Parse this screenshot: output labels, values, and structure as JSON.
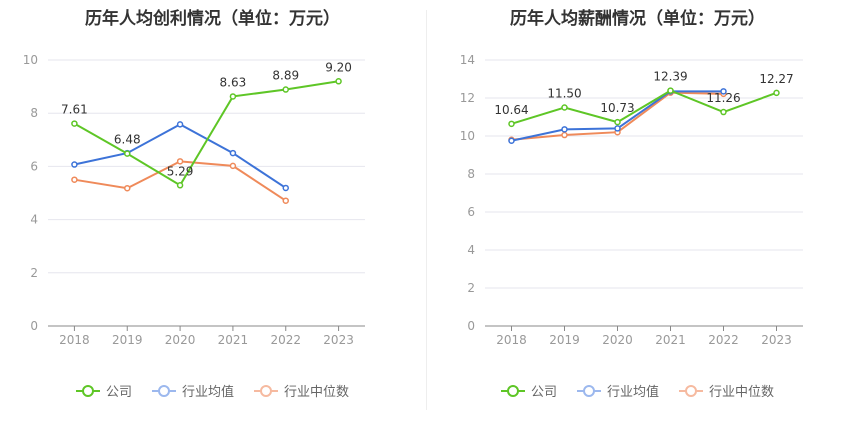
{
  "charts": [
    {
      "title": "历年人均创利情况（单位：万元）",
      "legend": [
        "公司",
        "行业均值",
        "行业中位数"
      ]
    },
    {
      "title": "历年人均薪酬情况（单位：万元）",
      "legend": [
        "公司",
        "行业均值",
        "行业中位数"
      ]
    }
  ],
  "colors": {
    "company": "#5ec626",
    "avg": "#3d73d8",
    "median": "#ef8a5a"
  },
  "chart_data": [
    {
      "type": "line",
      "title": "历年人均创利情况（单位：万元）",
      "categories": [
        "2018",
        "2019",
        "2020",
        "2021",
        "2022",
        "2023"
      ],
      "ylim": [
        0,
        10
      ],
      "yticks": [
        0,
        2,
        4,
        6,
        8,
        10
      ],
      "grid": true,
      "legend_position": "bottom",
      "series": [
        {
          "name": "公司",
          "values": [
            7.61,
            6.48,
            5.29,
            8.63,
            8.89,
            9.2
          ],
          "labels": [
            "7.61",
            "6.48",
            "5.29",
            "8.63",
            "8.89",
            "9.20"
          ]
        },
        {
          "name": "行业均值",
          "values": [
            6.07,
            6.5,
            7.58,
            6.5,
            5.19,
            null
          ]
        },
        {
          "name": "行业中位数",
          "values": [
            5.5,
            5.18,
            6.19,
            6.02,
            4.71,
            null
          ]
        }
      ]
    },
    {
      "type": "line",
      "title": "历年人均薪酬情况（单位：万元）",
      "categories": [
        "2018",
        "2019",
        "2020",
        "2021",
        "2022",
        "2023"
      ],
      "ylim": [
        0,
        14
      ],
      "yticks": [
        0,
        2,
        4,
        6,
        8,
        10,
        12,
        14
      ],
      "grid": true,
      "legend_position": "bottom",
      "series": [
        {
          "name": "公司",
          "values": [
            10.64,
            11.5,
            10.73,
            12.39,
            11.26,
            12.27
          ],
          "labels": [
            "10.64",
            "11.50",
            "10.73",
            "12.39",
            "11.26",
            "12.27"
          ]
        },
        {
          "name": "行业均值",
          "values": [
            9.75,
            10.35,
            10.4,
            12.35,
            12.35,
            null
          ]
        },
        {
          "name": "行业中位数",
          "values": [
            9.8,
            10.05,
            10.2,
            12.28,
            12.22,
            null
          ]
        }
      ]
    }
  ]
}
